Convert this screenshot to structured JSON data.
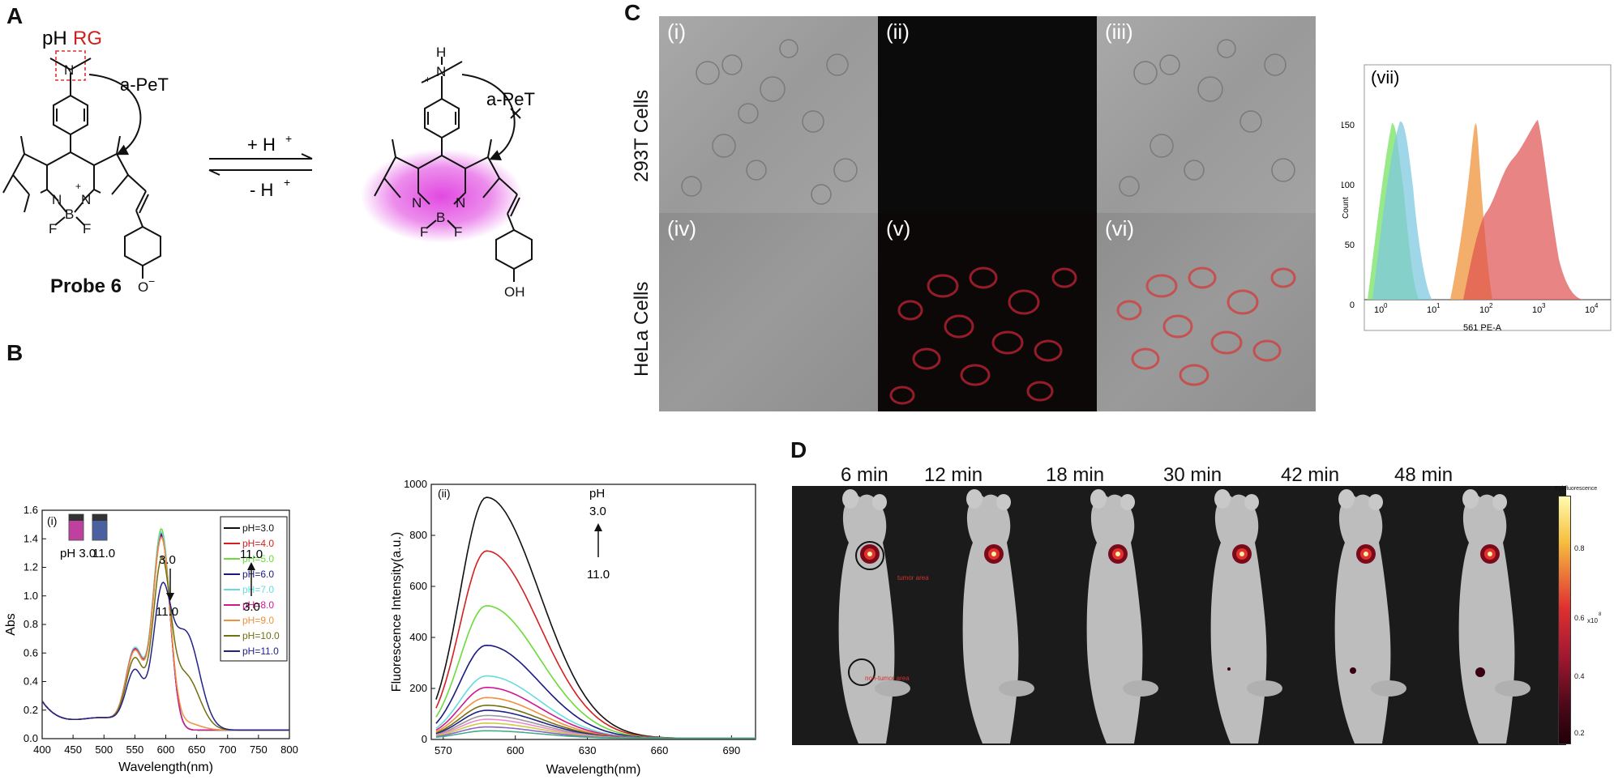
{
  "panels": {
    "A": {
      "letter": "A",
      "ph_text": "pH",
      "rg_text": "RG",
      "apet_left": "a-PeT",
      "apet_right": "a-PeT",
      "forward": "+ H",
      "reverse": "- H",
      "plus_sup": "+",
      "probe_name": "Probe 6",
      "atoms": {
        "N": "N",
        "B": "B",
        "F": "F",
        "H": "H",
        "O": "O",
        "OH": "OH",
        "plus": "+",
        "minus": "−"
      },
      "colors": {
        "rg": "#cc1f1f",
        "glow": "#e040e0",
        "box": "#e03030"
      }
    },
    "B": {
      "letter": "B",
      "sub_i": "(i)",
      "sub_ii": "(ii)",
      "vial_labels": [
        "pH 3.0",
        "11.0"
      ],
      "arrow_down_top": "3.0",
      "arrow_down_bottom": "11.0",
      "arrow_up_top": "11.0",
      "arrow_up_bottom": "3.0",
      "fl_arrow_top1": "pH",
      "fl_arrow_top2": "3.0",
      "fl_arrow_bottom": "11.0"
    },
    "C": {
      "letter": "C",
      "row_labels": [
        "293T Cells",
        "HeLa Cells"
      ],
      "micro_labels": [
        "(i)",
        "(ii)",
        "(iii)",
        "(iv)",
        "(v)",
        "(vi)"
      ],
      "flow": {
        "label": "(vii)",
        "ylabel": "Count",
        "xlabel": "561 PE-A",
        "yticks": [
          "0",
          "50",
          "100",
          "150"
        ],
        "xticks": [
          "10",
          "10",
          "10",
          "10",
          "10"
        ],
        "xtick_exps": [
          "0",
          "1",
          "2",
          "3",
          "4"
        ],
        "colors": [
          "#7ee36a",
          "#7fc8e0",
          "#f0a050",
          "#e05050"
        ]
      }
    },
    "D": {
      "letter": "D",
      "times": [
        "6 min",
        "12 min",
        "18 min",
        "30 min",
        "42 min",
        "48 min"
      ],
      "tumor_label": "tumor area",
      "non_tumor_label": "non-tumor area",
      "colorbar_title": "Epi-fluorescence",
      "colorbar_ticks": [
        "0.8",
        "0.6",
        "0.4",
        "0.2"
      ],
      "colorbar_unit": "x10",
      "colorbar_exp": "8"
    }
  },
  "chart_data": [
    {
      "type": "line",
      "id": "abs",
      "title": "",
      "xlabel": "Wavelength(nm)",
      "ylabel": "Abs",
      "xlim": [
        400,
        800
      ],
      "ylim": [
        0,
        1.6
      ],
      "xticks": [
        400,
        450,
        500,
        550,
        600,
        650,
        700,
        750,
        800
      ],
      "yticks": [
        0.0,
        0.2,
        0.4,
        0.6,
        0.8,
        1.0,
        1.2,
        1.4,
        1.6
      ],
      "ytick_labels": [
        "0.0",
        "0.2",
        "0.4",
        "0.6",
        "0.8",
        "1.0",
        "1.2",
        "1.4",
        "1.6"
      ],
      "legend_position": "top-right",
      "series": [
        {
          "name": "pH=3.0",
          "color": "#111111",
          "peak": 1.36,
          "shoulder": 0.0,
          "s550": 0.52
        },
        {
          "name": "pH=4.0",
          "color": "#d42020",
          "peak": 1.37,
          "shoulder": 0.0,
          "s550": 0.53
        },
        {
          "name": "pH=5.0",
          "color": "#6adb3a",
          "peak": 1.4,
          "shoulder": 0.0,
          "s550": 0.53
        },
        {
          "name": "pH=6.0",
          "color": "#1a1a80",
          "peak": 1.36,
          "shoulder": 0.0,
          "s550": 0.52
        },
        {
          "name": "pH=7.0",
          "color": "#66dddd",
          "peak": 1.38,
          "shoulder": 0.0,
          "s550": 0.53
        },
        {
          "name": "pH=8.0",
          "color": "#d01890",
          "peak": 1.35,
          "shoulder": 0.0,
          "s550": 0.52
        },
        {
          "name": "pH=9.0",
          "color": "#f09040",
          "peak": 1.33,
          "shoulder": 0.05,
          "s550": 0.51
        },
        {
          "name": "pH=10.0",
          "color": "#707010",
          "peak": 1.12,
          "shoulder": 0.38,
          "s550": 0.46
        },
        {
          "name": "pH=11.0",
          "color": "#222288",
          "peak": 0.87,
          "shoulder": 0.68,
          "s550": 0.38
        }
      ]
    },
    {
      "type": "line",
      "id": "fluor",
      "title": "",
      "xlabel": "Wavelength(nm)",
      "ylabel": "Fluorescence Intensity(a.u.)",
      "xlim": [
        565,
        700
      ],
      "ylim": [
        0,
        1000
      ],
      "xticks": [
        570,
        600,
        630,
        660,
        690
      ],
      "yticks": [
        0,
        200,
        400,
        600,
        800,
        1000
      ],
      "peak_wavelength": 588,
      "series": [
        {
          "name": "pH=3.0",
          "color": "#111111",
          "peak": 945
        },
        {
          "name": "pH=4.0",
          "color": "#d42020",
          "peak": 735
        },
        {
          "name": "pH=5.0",
          "color": "#6adb3a",
          "peak": 520
        },
        {
          "name": "pH=6.0",
          "color": "#1a1a80",
          "peak": 365
        },
        {
          "name": "pH=7.0",
          "color": "#66dddd",
          "peak": 245
        },
        {
          "name": "pH=8.0",
          "color": "#d01890",
          "peak": 200
        },
        {
          "name": "pH=9.0",
          "color": "#f09040",
          "peak": 160
        },
        {
          "name": "pH=10.0",
          "color": "#707010",
          "peak": 130
        },
        {
          "name": "pH=11.0",
          "color": "#222288",
          "peak": 110
        },
        {
          "name": "",
          "color": "#999999",
          "peak": 90
        },
        {
          "name": "",
          "color": "#ee88cc",
          "peak": 75
        },
        {
          "name": "",
          "color": "#cccc44",
          "peak": 60
        },
        {
          "name": "",
          "color": "#8866cc",
          "peak": 45
        },
        {
          "name": "",
          "color": "#44aa88",
          "peak": 30
        }
      ]
    }
  ]
}
